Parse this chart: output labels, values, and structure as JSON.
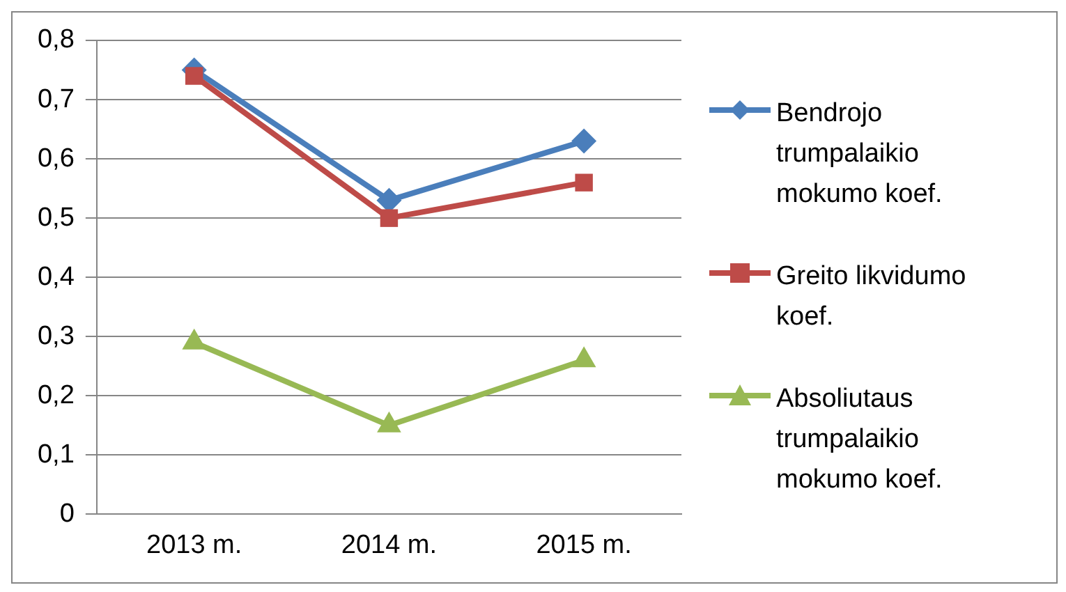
{
  "chart_data": {
    "type": "line",
    "categories": [
      "2013 m.",
      "2014 m.",
      "2015 m."
    ],
    "series": [
      {
        "name": "Bendrojo trumpalaikio mokumo koef.",
        "color": "#4a7ebb",
        "marker": "diamond",
        "values": [
          0.75,
          0.53,
          0.63
        ]
      },
      {
        "name": "Greito likvidumo koef.",
        "color": "#be4b48",
        "marker": "square",
        "values": [
          0.74,
          0.5,
          0.56
        ]
      },
      {
        "name": "Absoliutaus trumpalaikio mokumo koef.",
        "color": "#98b954",
        "marker": "triangle",
        "values": [
          0.29,
          0.15,
          0.26
        ]
      }
    ],
    "ylim": [
      0,
      0.8
    ],
    "yticks": [
      0,
      {
        "value": 0.1,
        "label": "0,1"
      },
      {
        "value": 0.2,
        "label": "0,2"
      },
      {
        "value": 0.3,
        "label": "0,3"
      },
      {
        "value": 0.4,
        "label": "0,4"
      },
      {
        "value": 0.5,
        "label": "0,5"
      },
      {
        "value": 0.6,
        "label": "0,6"
      },
      {
        "value": 0.7,
        "label": "0,7"
      },
      {
        "value": 0.8,
        "label": "0,8"
      }
    ],
    "grid": "y",
    "legend": "right",
    "line_style": "solid"
  }
}
